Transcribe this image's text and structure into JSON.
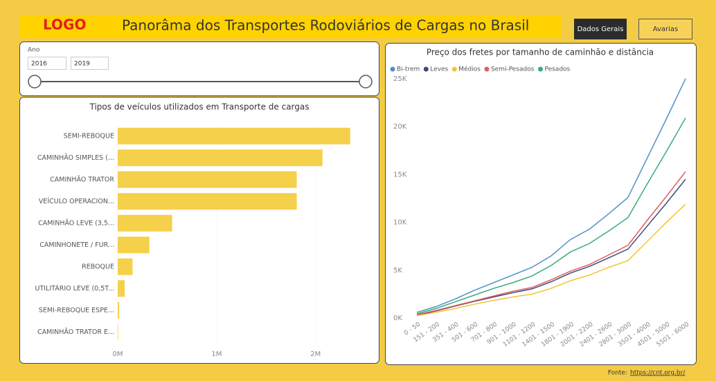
{
  "header": {
    "logo": "LOGO",
    "title": "Panorâma dos Transportes Rodoviários de Cargas no Brasil",
    "buttons": [
      "Dados Gerais",
      "Avarias"
    ]
  },
  "slicer": {
    "label": "Ano",
    "from": "2016",
    "to": "2019"
  },
  "chart_data": [
    {
      "type": "bar",
      "orientation": "horizontal",
      "title": "Tipos de veículos utilizados em Transporte de cargas",
      "categories": [
        "SEMI-REBOQUE",
        "CAMINHÃO SIMPLES (...",
        "CAMINHÃO TRATOR",
        "VEÍCULO OPERACION...",
        "CAMINHÃO LEVE (3,5...",
        "CAMINHONETE / FUR...",
        "REBOQUE",
        "UTILITÁRIO LEVE (0,5T...",
        "SEMI-REBOQUE ESPE...",
        "CAMINHÃO TRATOR E..."
      ],
      "values": [
        2350000,
        2070000,
        1810000,
        1810000,
        550000,
        320000,
        150000,
        70000,
        15000,
        5000
      ],
      "color": "#f5d04a",
      "grid": true,
      "xlim": [
        0,
        2450000
      ],
      "xticks": [
        {
          "value": 0,
          "label": "0M"
        },
        {
          "value": 1000000,
          "label": "1M"
        },
        {
          "value": 2000000,
          "label": "2M"
        }
      ]
    },
    {
      "type": "line",
      "title": "Preço dos fretes por tamanho de caminhão e distância",
      "categories": [
        "0 - 50",
        "151 - 200",
        "351 - 400",
        "501 - 600",
        "701 - 800",
        "901 - 1000",
        "1101 - 1200",
        "1401 - 1500",
        "1801 - 1900",
        "2001 - 2200",
        "2401 - 2600",
        "2801 - 3000",
        "3501 - 4000",
        "4501 - 5000",
        "5501 - 6000"
      ],
      "series": [
        {
          "name": "Bi-trem",
          "color": "#4f8fc9",
          "values": [
            600,
            1200,
            2000,
            2900,
            3700,
            4500,
            5300,
            6500,
            8200,
            9300,
            10900,
            12600,
            16700,
            20800,
            25000
          ]
        },
        {
          "name": "Leves",
          "color": "#3c4a7a",
          "values": [
            300,
            750,
            1250,
            1750,
            2200,
            2650,
            3050,
            3800,
            4700,
            5400,
            6300,
            7200,
            9600,
            12000,
            14500
          ]
        },
        {
          "name": "Médios",
          "color": "#f2c430",
          "values": [
            250,
            600,
            1000,
            1450,
            1850,
            2200,
            2500,
            3100,
            3900,
            4500,
            5300,
            6000,
            8000,
            10000,
            11900
          ]
        },
        {
          "name": "Semi-Pesados",
          "color": "#e05d5d",
          "values": [
            350,
            800,
            1300,
            1800,
            2300,
            2800,
            3200,
            4000,
            4900,
            5600,
            6600,
            7600,
            10200,
            12700,
            15300
          ]
        },
        {
          "name": "Pesados",
          "color": "#3aa97f",
          "values": [
            450,
            1000,
            1700,
            2400,
            3100,
            3700,
            4400,
            5500,
            6900,
            7800,
            9100,
            10500,
            14000,
            17400,
            20900
          ]
        }
      ],
      "ylim": [
        0,
        26000
      ],
      "legend": "top-left",
      "grid": false,
      "yticks": [
        {
          "value": 0,
          "label": "0K"
        },
        {
          "value": 5000,
          "label": "5K"
        },
        {
          "value": 10000,
          "label": "10K"
        },
        {
          "value": 15000,
          "label": "15K"
        },
        {
          "value": 20000,
          "label": "20K"
        },
        {
          "value": 25000,
          "label": "25K"
        }
      ]
    }
  ],
  "footer": {
    "label": "Fonte:",
    "link": "https://cnt.org.br/"
  }
}
